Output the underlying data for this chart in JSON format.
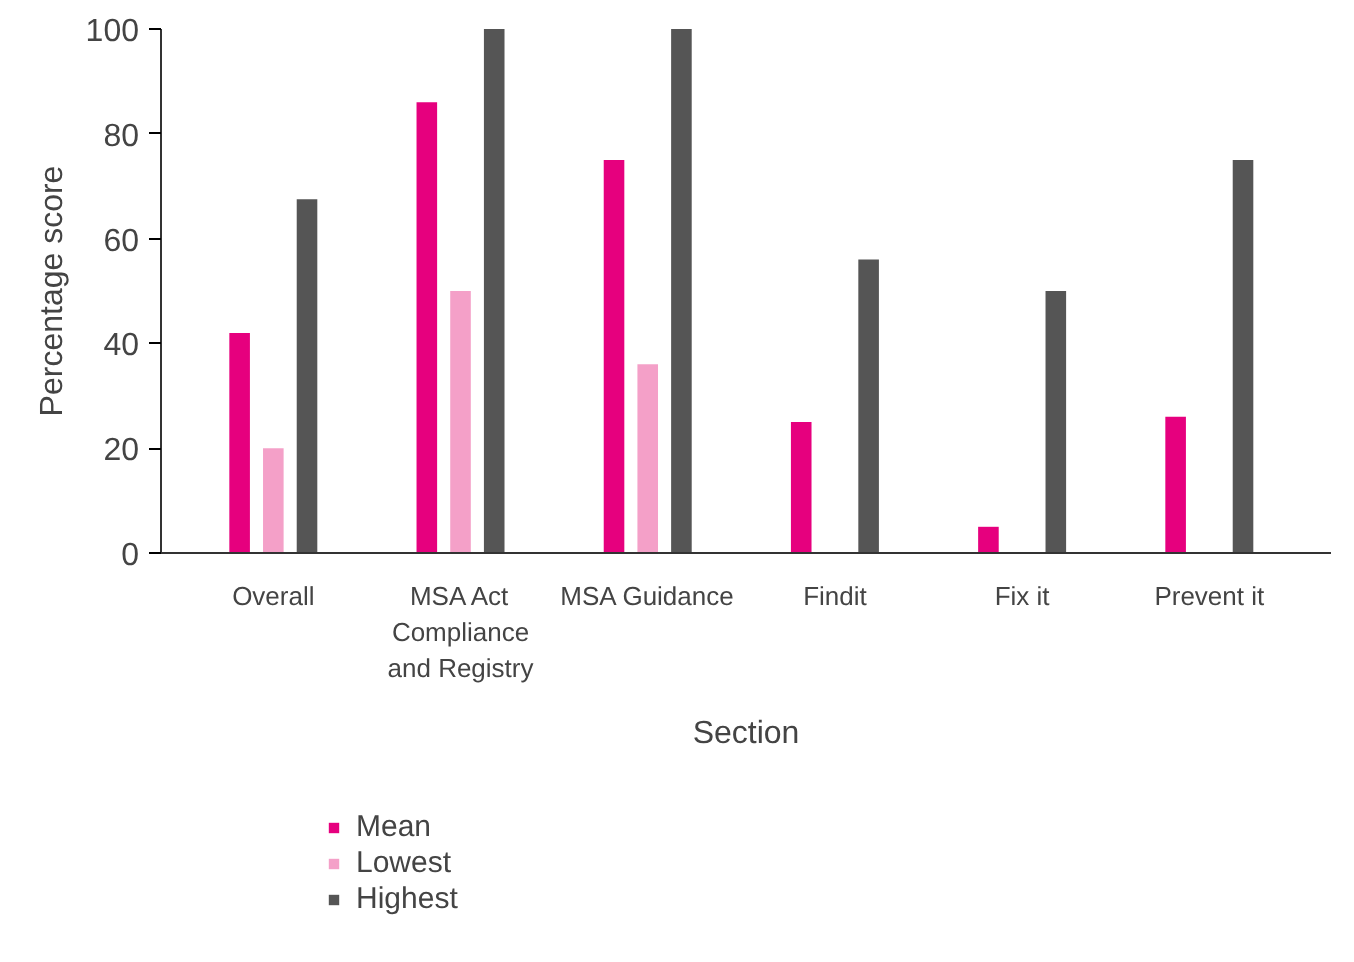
{
  "chart_data": {
    "type": "bar",
    "xlabel": "Section",
    "ylabel": "Percentage score",
    "categories": [
      "Overall",
      "MSA Act Compliance and Registry",
      "MSA Guidance",
      "Findit",
      "Fix it",
      "Prevent it"
    ],
    "series": [
      {
        "name": "Mean",
        "color": "#e6007e",
        "values": [
          42,
          86,
          75,
          25,
          5,
          26
        ]
      },
      {
        "name": "Lowest",
        "color": "#f4a0c8",
        "values": [
          20,
          50,
          36,
          0,
          0,
          0
        ]
      },
      {
        "name": "Highest",
        "color": "#555555",
        "values": [
          67.5,
          100,
          100,
          56,
          50,
          75
        ]
      }
    ],
    "ylim": [
      0,
      100
    ],
    "yticks": [
      0,
      20,
      40,
      60,
      80,
      100
    ],
    "grid": false,
    "legend": "bottom"
  }
}
